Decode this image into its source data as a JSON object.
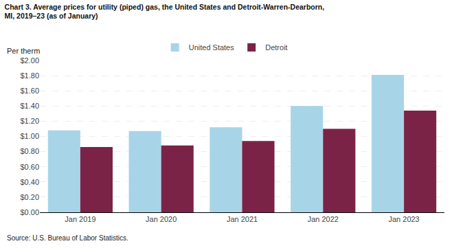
{
  "chart_data": {
    "type": "bar",
    "title": "Chart 3. Average prices for utility (piped) gas, the United States and Detroit-Warren-Dearborn,\nMI, 2019–23 (as of January)",
    "ylabel": "Per therm",
    "annotations": [
      "Source: U.S. Bureau of Labor Statistics."
    ],
    "categories": [
      "Jan 2019",
      "Jan 2020",
      "Jan 2021",
      "Jan 2022",
      "Jan 2023"
    ],
    "series": [
      {
        "name": "United States",
        "color": "#a8d4e8",
        "values": [
          1.08,
          1.07,
          1.12,
          1.4,
          1.81
        ]
      },
      {
        "name": "Detroit",
        "color": "#7b2346",
        "values": [
          0.86,
          0.88,
          0.94,
          1.1,
          1.34
        ]
      }
    ],
    "ylim": [
      0,
      2.0
    ],
    "yticks": [
      {
        "value": 0.0,
        "label": "$0.00"
      },
      {
        "value": 0.2,
        "label": "$0.20"
      },
      {
        "value": 0.4,
        "label": "$0.40"
      },
      {
        "value": 0.6,
        "label": "$0.60"
      },
      {
        "value": 0.8,
        "label": "$0.80"
      },
      {
        "value": 1.0,
        "label": "$1.00"
      },
      {
        "value": 1.2,
        "label": "$1.20"
      },
      {
        "value": 1.4,
        "label": "$1.40"
      },
      {
        "value": 1.6,
        "label": "$1.60"
      },
      {
        "value": 1.8,
        "label": "$1.80"
      },
      {
        "value": 2.0,
        "label": "$2.00"
      }
    ],
    "grid": true,
    "legend": "top"
  }
}
